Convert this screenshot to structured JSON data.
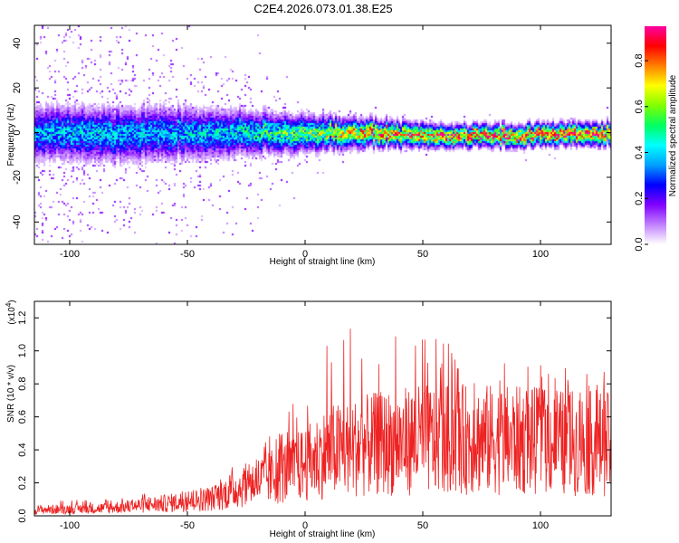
{
  "title": "C2E4.2026.073.01.38.E25",
  "chart_data": [
    {
      "type": "heatmap",
      "xlabel": "Height of straight line (km)",
      "ylabel": "Frequency (Hz)",
      "xlim": [
        -115,
        130
      ],
      "ylim": [
        -50,
        48
      ],
      "x_ticks": [
        -100,
        -50,
        0,
        50,
        100
      ],
      "y_ticks": [
        -40,
        -20,
        0,
        20,
        40
      ],
      "colorbar": {
        "label": "Normalized spectral amplitude",
        "range": [
          0.0,
          0.95
        ],
        "ticks": [
          "0.0",
          "0.2",
          "0.4",
          "0.6",
          "0.8"
        ],
        "colormap": [
          "#ffffff",
          "#c080ff",
          "#8000ff",
          "#0000ff",
          "#00a0ff",
          "#00ffff",
          "#00ff60",
          "#80ff00",
          "#ffff00",
          "#ff8000",
          "#ff0000",
          "#ff00a0"
        ]
      },
      "ridge": [
        {
          "x": -115,
          "center": 0,
          "halfwidth": 6,
          "peak": 0.4,
          "scatter": 40
        },
        {
          "x": -90,
          "center": 0,
          "halfwidth": 6,
          "peak": 0.42,
          "scatter": 38
        },
        {
          "x": -60,
          "center": 0,
          "halfwidth": 6,
          "peak": 0.4,
          "scatter": 25
        },
        {
          "x": -30,
          "center": 0,
          "halfwidth": 5,
          "peak": 0.45,
          "scatter": 20
        },
        {
          "x": 0,
          "center": 0,
          "halfwidth": 4,
          "peak": 0.6,
          "scatter": 8
        },
        {
          "x": 30,
          "center": 0,
          "halfwidth": 3,
          "peak": 0.8,
          "scatter": 5
        },
        {
          "x": 60,
          "center": -1,
          "halfwidth": 2.5,
          "peak": 0.85,
          "scatter": 4
        },
        {
          "x": 100,
          "center": -1,
          "halfwidth": 2.5,
          "peak": 0.9,
          "scatter": 4
        },
        {
          "x": 130,
          "center": 0,
          "halfwidth": 2.5,
          "peak": 0.9,
          "scatter": 4
        }
      ]
    },
    {
      "type": "line",
      "xlabel": "Height of straight line (km)",
      "ylabel": "SNR (10 * v/v)",
      "multiplier_label": "(x10",
      "multiplier_exp": "4",
      "multiplier_close": ")",
      "xlim": [
        -115,
        130
      ],
      "ylim": [
        0,
        1.3
      ],
      "x_ticks": [
        -100,
        -50,
        0,
        50,
        100
      ],
      "y_ticks": [
        "0.0",
        "0.2",
        "0.4",
        "0.6",
        "0.8",
        "1.0",
        "1.2"
      ],
      "color": "#ee2222",
      "envelope": [
        {
          "x": -115,
          "mean": 0.04,
          "max": 0.09
        },
        {
          "x": -85,
          "mean": 0.05,
          "max": 0.1
        },
        {
          "x": -60,
          "mean": 0.08,
          "max": 0.15
        },
        {
          "x": -40,
          "mean": 0.11,
          "max": 0.2
        },
        {
          "x": -25,
          "mean": 0.2,
          "max": 0.36
        },
        {
          "x": -10,
          "mean": 0.28,
          "max": 0.55
        },
        {
          "x": 0,
          "mean": 0.34,
          "max": 0.82
        },
        {
          "x": 10,
          "mean": 0.42,
          "max": 1.1
        },
        {
          "x": 30,
          "mean": 0.47,
          "max": 1.2
        },
        {
          "x": 50,
          "mean": 0.5,
          "max": 1.1
        },
        {
          "x": 80,
          "mean": 0.5,
          "max": 0.95
        },
        {
          "x": 110,
          "mean": 0.48,
          "max": 0.9
        },
        {
          "x": 130,
          "mean": 0.47,
          "max": 0.88
        }
      ]
    }
  ]
}
